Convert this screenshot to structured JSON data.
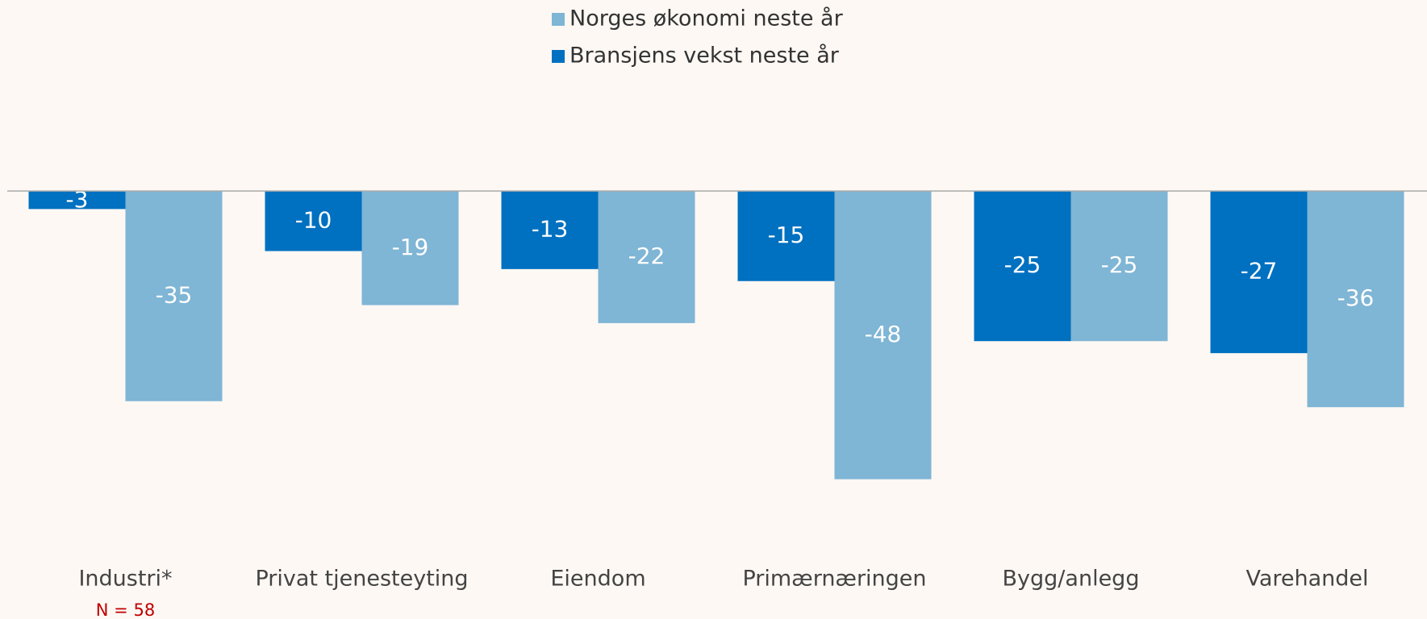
{
  "chart_data": {
    "type": "bar",
    "categories": [
      "Industri*",
      "Privat tjenesteyting",
      "Eiendom",
      "Primærnæringen",
      "Bygg/anlegg",
      "Varehandel"
    ],
    "series": [
      {
        "name": "Norges økonomi neste år",
        "color": "#7fb5d5",
        "values": [
          -35,
          -19,
          -22,
          -48,
          -25,
          -36
        ]
      },
      {
        "name": "Bransjens vekst neste år",
        "color": "#0070c0",
        "values": [
          -3,
          -10,
          -13,
          -15,
          -25,
          -27
        ]
      }
    ],
    "annotation": "N = 58",
    "annotation_color": "#c00000",
    "ylim": [
      -60,
      0
    ],
    "legend": "top"
  }
}
